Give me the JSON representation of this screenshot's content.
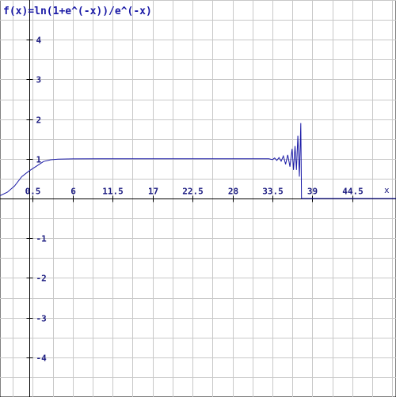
{
  "chart_data": {
    "type": "line",
    "title": "f(x)=ln(1+e^(-x))/e^(-x)",
    "xlabel": "x",
    "ylabel": "",
    "xlim": [
      -4.0,
      50.5
    ],
    "ylim": [
      -5.0,
      5.0
    ],
    "x_ticks": [
      0.5,
      6,
      11.5,
      17,
      22.5,
      28,
      33.5,
      39,
      44.5
    ],
    "x_tick_labels": [
      "0.5",
      "6",
      "11.5",
      "17",
      "22.5",
      "28",
      "33.5",
      "39",
      "44.5"
    ],
    "y_ticks": [
      4,
      3,
      2,
      1,
      -1,
      -2,
      -3,
      -4
    ],
    "y_tick_labels": [
      "4",
      "3",
      "2",
      "1",
      "-1",
      "-2",
      "-3",
      "-4"
    ],
    "grid": true,
    "colors": {
      "curve": "#1a1aa6",
      "grid": "#c8c8c8",
      "axis": "#000000",
      "title": "#1a1aa6"
    },
    "series": [
      {
        "x": [
          -4.0,
          -3.0,
          -2.0,
          -1.0,
          0.0,
          1.0,
          2.0,
          3.0,
          4.0,
          6.0,
          10.0,
          15.0,
          20.0,
          25.0,
          30.0,
          32.0,
          33.0,
          33.5,
          33.8,
          34.1,
          34.4,
          34.7,
          35.0,
          35.3,
          35.6,
          35.9,
          36.2,
          36.4,
          36.6,
          36.8,
          37.0,
          37.2,
          37.4,
          37.5,
          37.55,
          50.5
        ],
        "y": [
          0.0725,
          0.1569,
          0.3133,
          0.5514,
          0.6931,
          0.8133,
          0.9328,
          0.9754,
          0.9909,
          0.9975,
          1.0,
          1.0,
          1.0,
          1.0,
          1.0,
          1.0,
          1.0,
          0.98,
          1.02,
          0.96,
          1.03,
          0.94,
          1.07,
          0.86,
          1.1,
          0.8,
          1.25,
          0.72,
          1.32,
          0.72,
          1.58,
          0.55,
          1.9,
          0.0,
          0.0,
          0.0
        ]
      }
    ]
  }
}
